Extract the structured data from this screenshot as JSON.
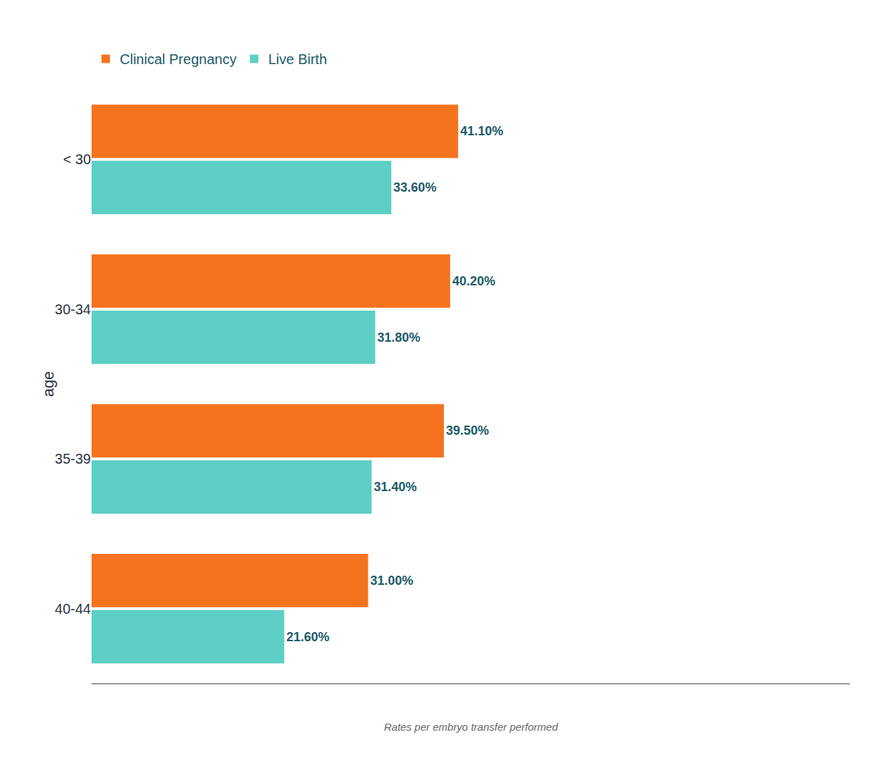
{
  "chart_data": {
    "type": "bar",
    "orientation": "horizontal",
    "categories": [
      "< 30",
      "30-34",
      "35-39",
      "40-44"
    ],
    "series": [
      {
        "name": "Clinical Pregnancy",
        "color": "#F5731E",
        "values": [
          41.1,
          40.2,
          39.5,
          31.0
        ],
        "value_labels": [
          "41.10%",
          "40.20%",
          "39.50%",
          "31.00%"
        ]
      },
      {
        "name": "Live Birth",
        "color": "#5DCFC4",
        "values": [
          33.6,
          31.8,
          31.4,
          21.6
        ],
        "value_labels": [
          "33.60%",
          "31.80%",
          "31.40%",
          "21.60%"
        ]
      }
    ],
    "y_label": "age",
    "annotations": [
      "Rates per embryo transfer performed"
    ],
    "xlim": [
      0,
      85
    ],
    "data_labels": true,
    "tick_labels": "y",
    "grid": false,
    "legend": "upper left"
  }
}
